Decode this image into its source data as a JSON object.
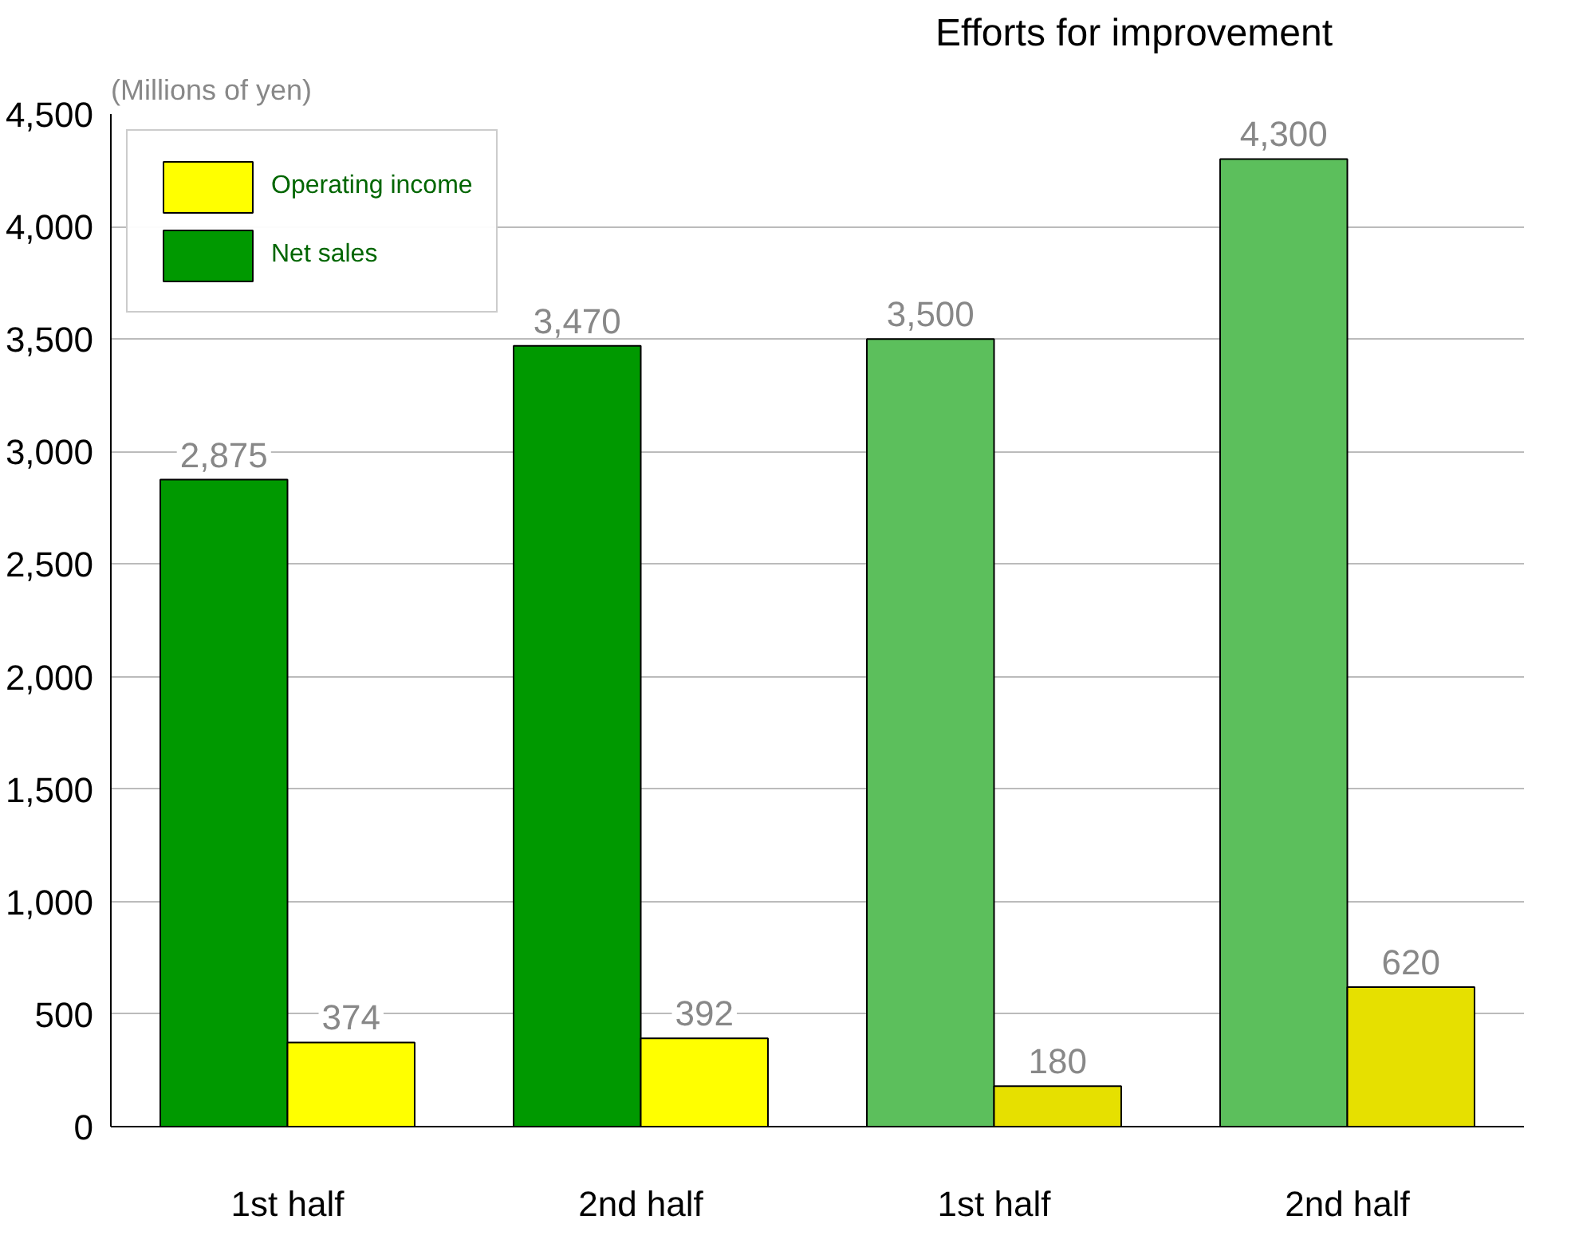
{
  "chart_data": {
    "type": "bar",
    "ylabel": "(Millions of yen)",
    "categories": [
      "1st half",
      "2nd half",
      "1st half",
      "2nd half"
    ],
    "series": [
      {
        "name": "Net sales",
        "colors": [
          "#009900",
          "#009900",
          "#5cbf5c",
          "#5cbf5c"
        ],
        "values": [
          2875,
          3470,
          3500,
          4300
        ],
        "value_labels": [
          "2,875",
          "3,470",
          "3,500",
          "4,300"
        ]
      },
      {
        "name": "Operating income",
        "colors": [
          "#ffff00",
          "#ffff00",
          "#e6e000",
          "#e6e000"
        ],
        "values": [
          374,
          392,
          180,
          620
        ],
        "value_labels": [
          "374",
          "392",
          "180",
          "620"
        ]
      }
    ],
    "ylim": [
      0,
      4500
    ],
    "yticks": [
      {
        "value": 0,
        "label": "0"
      },
      {
        "value": 500,
        "label": "500"
      },
      {
        "value": 1000,
        "label": "1,000"
      },
      {
        "value": 1500,
        "label": "1,500"
      },
      {
        "value": 2000,
        "label": "2,000"
      },
      {
        "value": 2500,
        "label": "2,500"
      },
      {
        "value": 3000,
        "label": "3,000"
      },
      {
        "value": 3500,
        "label": "3,500"
      },
      {
        "value": 4000,
        "label": "4,000"
      },
      {
        "value": 4500,
        "label": "4,500"
      }
    ],
    "annotations": [
      "Efforts for improvement"
    ],
    "grid": "y",
    "legend": "top left"
  }
}
